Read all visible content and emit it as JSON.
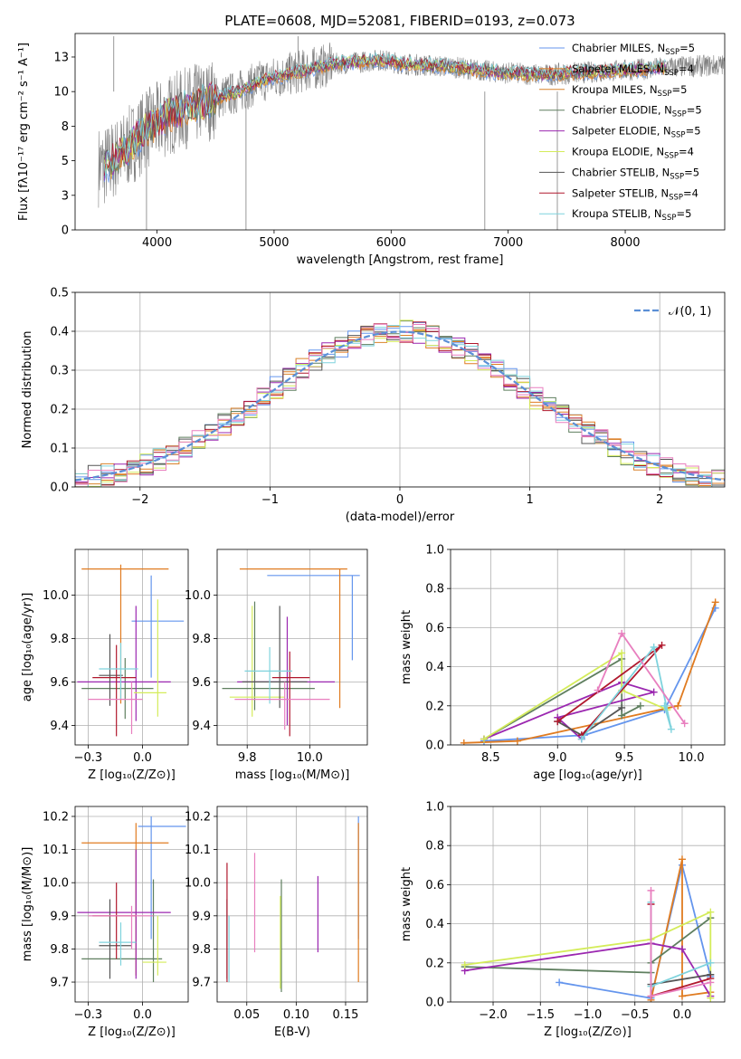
{
  "colors": {
    "chabrier_miles": "#6495ed",
    "salpeter_miles": "#e07b20",
    "kroupa_miles": "#d9822b",
    "chabrier_elodie": "#5f7f5f",
    "salpeter_elodie": "#9b27b0",
    "kroupa_elodie": "#d4ec5a",
    "chabrier_stelib": "#555555",
    "salpeter_stelib": "#b0182d",
    "kroupa_stelib": "#7fd3dd",
    "gaussian": "#5b8fd6",
    "data": "#808080"
  },
  "chart_data": [
    {
      "id": "spectrum",
      "type": "line",
      "title": "PLATE=0608, MJD=52081, FIBERID=0193, z=0.073",
      "xlabel": "wavelength [Angstrom, rest frame]",
      "ylabel": "Flux [fλ10⁻¹⁷ erg cm⁻² s⁻¹ A⁻¹]",
      "xlim": [
        3300,
        8850
      ],
      "ylim": [
        0,
        14.2
      ],
      "xticks": [
        4000,
        5000,
        6000,
        7000,
        8000
      ],
      "yticks": [
        0.0,
        2.5,
        5.0,
        7.5,
        10.0,
        12.5
      ],
      "legend_position": "top-right",
      "legend": [
        {
          "label": "Chabrier MILES, N",
          "sub": "SSP",
          "tail": "=5"
        },
        {
          "label": "Salpeter MILES, N",
          "sub": "SSP",
          "tail": "=4"
        },
        {
          "label": "Kroupa MILES, N",
          "sub": "SSP",
          "tail": "=5"
        },
        {
          "label": "Chabrier ELODIE, N",
          "sub": "SSP",
          "tail": "=5"
        },
        {
          "label": "Salpeter ELODIE, N",
          "sub": "SSP",
          "tail": "=5"
        },
        {
          "label": "Kroupa ELODIE, N",
          "sub": "SSP",
          "tail": "=4"
        },
        {
          "label": "Chabrier STELIB, N",
          "sub": "SSP",
          "tail": "=5"
        },
        {
          "label": "Salpeter STELIB, N",
          "sub": "SSP",
          "tail": "=4"
        },
        {
          "label": "Kroupa STELIB, N",
          "sub": "SSP",
          "tail": "=5"
        }
      ],
      "continuum": {
        "x": [
          3550,
          3700,
          3900,
          4100,
          4300,
          4500,
          4700,
          4900,
          5100,
          5300,
          5500,
          5700,
          5900,
          6100,
          6300,
          6500,
          6700,
          6900,
          7100,
          7300,
          7500,
          7700,
          7900,
          8100,
          8300,
          8500,
          8800
        ],
        "y": [
          4.6,
          5.5,
          7.2,
          8.3,
          9.0,
          9.5,
          10.0,
          10.8,
          11.2,
          11.6,
          12.0,
          12.1,
          12.3,
          12.0,
          11.9,
          11.8,
          11.6,
          11.4,
          11.3,
          11.2,
          11.3,
          11.4,
          11.5,
          11.6,
          11.7,
          11.8,
          11.9
        ]
      }
    },
    {
      "id": "residuals",
      "type": "line",
      "xlabel": "(data-model)/error",
      "ylabel": "Normed distribution",
      "xlim": [
        -2.5,
        2.5
      ],
      "ylim": [
        0.0,
        0.5
      ],
      "xticks": [
        -2,
        -1,
        0,
        1,
        2
      ],
      "yticks": [
        0.0,
        0.1,
        0.2,
        0.3,
        0.4,
        0.5
      ],
      "grid": true,
      "legend_position": "top-right",
      "legend": [
        {
          "label": "𝒩(0, 1)"
        }
      ],
      "bin_width": 0.1
    },
    {
      "id": "age-vs-Z",
      "type": "scatter",
      "xlabel": "Z [log₁₀(Z/Z⊙)]",
      "ylabel": "age  [log₁₀(age/yr)]",
      "xlim": [
        -0.31,
        0.21
      ],
      "ylim": [
        9.31,
        10.21
      ],
      "xticks": [
        -0.25,
        0.0
      ],
      "yticks": [
        9.4,
        9.6,
        9.8,
        10.0
      ],
      "grid": true,
      "points": [
        {
          "c": "chabrier_miles",
          "x": 0.04,
          "y": 9.88,
          "xe": [
            -0.05,
            0.19
          ],
          "ye": [
            9.62,
            10.09
          ]
        },
        {
          "c": "salpeter_miles",
          "x": -0.1,
          "y": 10.12,
          "xe": [
            -0.28,
            0.12
          ],
          "ye": [
            9.5,
            10.14
          ]
        },
        {
          "c": "chabrier_elodie",
          "x": -0.08,
          "y": 9.57,
          "xe": [
            -0.28,
            0.05
          ],
          "ye": [
            9.43,
            9.71
          ]
        },
        {
          "c": "salpeter_elodie",
          "x": -0.03,
          "y": 9.6,
          "xe": [
            -0.3,
            0.13
          ],
          "ye": [
            9.42,
            9.95
          ]
        },
        {
          "c": "kroupa_elodie",
          "x": 0.07,
          "y": 9.55,
          "xe": [
            -0.04,
            0.11
          ],
          "ye": [
            9.44,
            9.98
          ]
        },
        {
          "c": "chabrier_stelib",
          "x": -0.15,
          "y": 9.63,
          "xe": [
            -0.2,
            -0.09
          ],
          "ye": [
            9.49,
            9.82
          ]
        },
        {
          "c": "salpeter_stelib",
          "x": -0.12,
          "y": 9.62,
          "xe": [
            -0.23,
            -0.03
          ],
          "ye": [
            9.35,
            9.77
          ]
        },
        {
          "c": "kroupa_stelib",
          "x": -0.1,
          "y": 9.66,
          "xe": [
            -0.2,
            -0.02
          ],
          "ye": [
            9.52,
            9.78
          ]
        },
        {
          "c": "kroupa_pink",
          "x": -0.05,
          "y": 9.52,
          "xe": [
            -0.25,
            0.0
          ],
          "ye": [
            9.36,
            9.6
          ]
        }
      ]
    },
    {
      "id": "age-vs-mass",
      "type": "scatter",
      "xlabel": "mass [log₁₀(M/M⊙)]",
      "xlim": [
        9.63,
        10.23
      ],
      "ylim": [
        9.31,
        10.21
      ],
      "xticks": [
        9.75,
        10.0
      ],
      "yticks": [
        9.4,
        9.6,
        9.8,
        10.0
      ],
      "grid": true,
      "points": [
        {
          "c": "chabrier_miles",
          "x": 10.17,
          "y": 10.09,
          "xe": [
            9.83,
            10.2
          ],
          "ye": [
            9.7,
            10.09
          ]
        },
        {
          "c": "salpeter_miles",
          "x": 10.12,
          "y": 10.12,
          "xe": [
            9.72,
            10.15
          ],
          "ye": [
            9.48,
            10.12
          ]
        },
        {
          "c": "chabrier_elodie",
          "x": 9.78,
          "y": 9.57,
          "xe": [
            9.65,
            10.02
          ],
          "ye": [
            9.47,
            9.97
          ]
        },
        {
          "c": "salpeter_elodie",
          "x": 9.91,
          "y": 9.6,
          "xe": [
            9.71,
            10.1
          ],
          "ye": [
            9.4,
            9.9
          ]
        },
        {
          "c": "kroupa_elodie",
          "x": 9.77,
          "y": 9.53,
          "xe": [
            9.68,
            9.9
          ],
          "ye": [
            9.44,
            9.95
          ]
        },
        {
          "c": "chabrier_stelib",
          "x": 9.88,
          "y": 9.6,
          "xe": [
            9.73,
            9.99
          ],
          "ye": [
            9.48,
            9.95
          ]
        },
        {
          "c": "salpeter_stelib",
          "x": 9.92,
          "y": 9.62,
          "xe": [
            9.85,
            10.0
          ],
          "ye": [
            9.35,
            9.74
          ]
        },
        {
          "c": "kroupa_stelib",
          "x": 9.84,
          "y": 9.65,
          "xe": [
            9.74,
            9.93
          ],
          "ye": [
            9.5,
            9.76
          ]
        },
        {
          "c": "kroupa_pink",
          "x": 9.9,
          "y": 9.52,
          "xe": [
            9.7,
            10.08
          ],
          "ye": [
            9.38,
            9.6
          ]
        }
      ]
    },
    {
      "id": "weight-vs-age",
      "type": "line",
      "xlabel": "age  [log₁₀(age/yr)]",
      "ylabel": "mass weight",
      "xlim": [
        8.2,
        10.25
      ],
      "ylim": [
        0.0,
        1.0
      ],
      "xticks": [
        8.5,
        9.0,
        9.5,
        10.0
      ],
      "yticks": [
        0.0,
        0.2,
        0.4,
        0.6,
        0.8,
        1.0
      ],
      "grid": true,
      "series": [
        {
          "c": "chabrier_miles",
          "x": [
            8.45,
            9.2,
            9.8,
            10.18
          ],
          "y": [
            0.02,
            0.05,
            0.18,
            0.7
          ]
        },
        {
          "c": "salpeter_miles",
          "x": [
            8.3,
            8.7,
            9.9,
            10.18
          ],
          "y": [
            0.01,
            0.02,
            0.2,
            0.73
          ]
        },
        {
          "c": "chabrier_elodie",
          "x": [
            8.45,
            9.48,
            9.48,
            9.62
          ],
          "y": [
            0.03,
            0.44,
            0.15,
            0.2
          ]
        },
        {
          "c": "salpeter_elodie",
          "x": [
            8.45,
            9.48,
            9.72,
            9.0,
            9.18
          ],
          "y": [
            0.03,
            0.32,
            0.27,
            0.14,
            0.03
          ]
        },
        {
          "c": "kroupa_elodie",
          "x": [
            8.45,
            9.48,
            9.48,
            9.82
          ],
          "y": [
            0.03,
            0.47,
            0.28,
            0.18
          ]
        },
        {
          "c": "chabrier_stelib",
          "x": [
            9.0,
            9.18,
            9.48
          ],
          "y": [
            0.12,
            0.05,
            0.19
          ]
        },
        {
          "c": "salpeter_stelib",
          "x": [
            9.18,
            9.78,
            9.0
          ],
          "y": [
            0.05,
            0.51,
            0.12
          ]
        },
        {
          "c": "kroupa_stelib",
          "x": [
            9.18,
            9.72,
            9.85,
            9.8
          ],
          "y": [
            0.03,
            0.5,
            0.08,
            0.2
          ]
        },
        {
          "c": "kroupa_pink",
          "x": [
            9.3,
            9.48,
            9.95
          ],
          "y": [
            0.28,
            0.57,
            0.11
          ]
        }
      ]
    },
    {
      "id": "mass-vs-Z",
      "type": "scatter",
      "xlabel": "Z [log₁₀(Z/Z⊙)]",
      "ylabel": "mass [log₁₀(M/M⊙)]",
      "xlim": [
        -0.31,
        0.21
      ],
      "ylim": [
        9.64,
        10.23
      ],
      "xticks": [
        -0.25,
        0.0
      ],
      "yticks": [
        9.7,
        9.8,
        9.9,
        10.0,
        10.1,
        10.2
      ],
      "grid": true,
      "points": [
        {
          "c": "chabrier_miles",
          "x": 0.04,
          "y": 10.17,
          "xe": [
            -0.02,
            0.2
          ],
          "ye": [
            9.83,
            10.2
          ]
        },
        {
          "c": "salpeter_miles",
          "x": -0.03,
          "y": 10.12,
          "xe": [
            -0.28,
            0.12
          ],
          "ye": [
            9.72,
            10.18
          ]
        },
        {
          "c": "chabrier_elodie",
          "x": 0.05,
          "y": 9.77,
          "xe": [
            -0.28,
            0.09
          ],
          "ye": [
            9.7,
            10.01
          ]
        },
        {
          "c": "salpeter_elodie",
          "x": -0.03,
          "y": 9.91,
          "xe": [
            -0.3,
            0.13
          ],
          "ye": [
            9.71,
            10.1
          ]
        },
        {
          "c": "kroupa_elodie",
          "x": 0.07,
          "y": 9.76,
          "xe": [
            0.0,
            0.11
          ],
          "ye": [
            9.72,
            9.9
          ]
        },
        {
          "c": "chabrier_stelib",
          "x": -0.15,
          "y": 9.81,
          "xe": [
            -0.2,
            -0.05
          ],
          "ye": [
            9.71,
            9.95
          ]
        },
        {
          "c": "salpeter_stelib",
          "x": -0.12,
          "y": 9.9,
          "xe": [
            -0.23,
            -0.03
          ],
          "ye": [
            9.77,
            10.0
          ]
        },
        {
          "c": "kroupa_stelib",
          "x": -0.1,
          "y": 9.82,
          "xe": [
            -0.2,
            -0.03
          ],
          "ye": [
            9.75,
            9.88
          ]
        },
        {
          "c": "kroupa_pink",
          "x": -0.05,
          "y": 9.9,
          "xe": [
            -0.25,
            0.05
          ],
          "ye": [
            9.8,
            9.93
          ]
        }
      ]
    },
    {
      "id": "mass-vs-ebv",
      "type": "scatter",
      "xlabel": "E(B-V)",
      "xlim": [
        0.02,
        0.172
      ],
      "ylim": [
        9.64,
        10.23
      ],
      "xticks": [
        0.05,
        0.1,
        0.15
      ],
      "yticks": [
        9.7,
        9.8,
        9.9,
        10.0,
        10.1,
        10.2
      ],
      "grid": true,
      "points": [
        {
          "c": "chabrier_miles",
          "x": 0.163,
          "y": 10.17,
          "ye": [
            9.83,
            10.2
          ]
        },
        {
          "c": "salpeter_miles",
          "x": 0.163,
          "y": 10.12,
          "ye": [
            9.7,
            10.18
          ]
        },
        {
          "c": "chabrier_elodie",
          "x": 0.085,
          "y": 9.9,
          "ye": [
            9.67,
            10.01
          ]
        },
        {
          "c": "salpeter_elodie",
          "x": 0.122,
          "y": 9.91,
          "ye": [
            9.79,
            10.02
          ]
        },
        {
          "c": "kroupa_elodie",
          "x": 0.084,
          "y": 9.76,
          "ye": [
            9.68,
            9.96
          ]
        },
        {
          "c": "chabrier_stelib",
          "x": 0.03,
          "y": 9.81,
          "ye": [
            9.71,
            9.95
          ]
        },
        {
          "c": "salpeter_stelib",
          "x": 0.03,
          "y": 9.9,
          "ye": [
            9.7,
            10.06
          ]
        },
        {
          "c": "kroupa_stelib",
          "x": 0.032,
          "y": 9.82,
          "ye": [
            9.7,
            9.9
          ]
        },
        {
          "c": "kroupa_pink",
          "x": 0.058,
          "y": 9.9,
          "ye": [
            9.79,
            10.09
          ]
        }
      ]
    },
    {
      "id": "weight-vs-Z",
      "type": "line",
      "xlabel": "Z [log₁₀(Z/Z⊙)]",
      "ylabel": "mass weight",
      "xlim": [
        -2.45,
        0.45
      ],
      "ylim": [
        0.0,
        1.0
      ],
      "xticks": [
        -2.0,
        -1.5,
        -1.0,
        -0.5,
        0.0
      ],
      "yticks": [
        0.0,
        0.2,
        0.4,
        0.6,
        0.8,
        1.0
      ],
      "grid": true,
      "series": [
        {
          "c": "chabrier_miles",
          "x": [
            -1.3,
            -0.33,
            0.0,
            0.3
          ],
          "y": [
            0.1,
            0.02,
            0.7,
            0.13
          ]
        },
        {
          "c": "salpeter_miles",
          "x": [
            -0.33,
            0.0,
            0.0,
            0.3
          ],
          "y": [
            0.01,
            0.73,
            0.03,
            0.05
          ]
        },
        {
          "c": "chabrier_elodie",
          "x": [
            -2.3,
            -0.33,
            -0.33,
            0.3
          ],
          "y": [
            0.18,
            0.15,
            0.2,
            0.43
          ]
        },
        {
          "c": "salpeter_elodie",
          "x": [
            -2.3,
            -0.33,
            0.0,
            0.3
          ],
          "y": [
            0.16,
            0.3,
            0.27,
            0.03
          ]
        },
        {
          "c": "kroupa_elodie",
          "x": [
            -2.3,
            -0.33,
            0.3,
            0.3
          ],
          "y": [
            0.19,
            0.32,
            0.46,
            0.02
          ]
        },
        {
          "c": "chabrier_stelib",
          "x": [
            -0.33,
            0.3
          ],
          "y": [
            0.09,
            0.14
          ]
        },
        {
          "c": "salpeter_stelib",
          "x": [
            -0.33,
            -0.33,
            0.3
          ],
          "y": [
            0.5,
            0.03,
            0.12
          ]
        },
        {
          "c": "kroupa_stelib",
          "x": [
            -0.33,
            -0.33,
            0.3
          ],
          "y": [
            0.51,
            0.08,
            0.2
          ]
        },
        {
          "c": "kroupa_pink",
          "x": [
            -0.33,
            -0.33,
            0.3
          ],
          "y": [
            0.57,
            0.03,
            0.1
          ]
        }
      ]
    }
  ]
}
